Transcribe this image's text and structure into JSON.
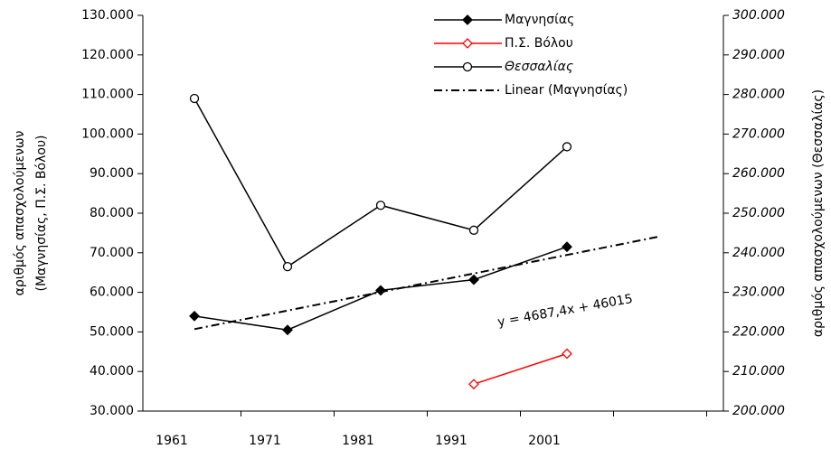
{
  "chart_data": {
    "type": "line",
    "categories": [
      "1961",
      "1971",
      "1981",
      "1991",
      "2001",
      null
    ],
    "y_label": [
      "αριθμός απασχολούμενων",
      "(Μαγνησίας, Π.Σ. Βόλου)"
    ],
    "y2_label": "αριθμός απασχολούμενων (Θεσσαλίας)",
    "annotation": "y = 4687,4x + 46015",
    "series": [
      {
        "name": "Μαγνησίας",
        "color": "#000000",
        "marker": "diamond",
        "values": [
          54000,
          50500,
          60500,
          63200,
          71500,
          null
        ]
      },
      {
        "name": "Π.Σ. Βόλου",
        "color": "#ff0000",
        "marker": "diamond-open",
        "values": [
          null,
          null,
          null,
          36800,
          44500,
          null
        ]
      },
      {
        "name": "Θεσσαλίας",
        "color": "#000000",
        "marker": "circle-open",
        "axis": "y2",
        "italic": true,
        "values": [
          279000,
          236500,
          252000,
          245700,
          266800,
          null
        ]
      },
      {
        "name": "Linear (Μαγνησίας)",
        "color": "#000000",
        "marker": "none",
        "dash": "dashdot",
        "values": [
          50702,
          55390,
          60077,
          64765,
          69452,
          74139
        ]
      }
    ],
    "ylim": [
      30000,
      130000
    ],
    "yticks": [
      {
        "value": 30000,
        "label": "30.000"
      },
      {
        "value": 40000,
        "label": "40.000"
      },
      {
        "value": 50000,
        "label": "50.000"
      },
      {
        "value": 60000,
        "label": "60.000"
      },
      {
        "value": 70000,
        "label": "70.000"
      },
      {
        "value": 80000,
        "label": "80.000"
      },
      {
        "value": 90000,
        "label": "90.000"
      },
      {
        "value": 100000,
        "label": "100.000"
      },
      {
        "value": 110000,
        "label": "110.000"
      },
      {
        "value": 120000,
        "label": "120.000"
      },
      {
        "value": 130000,
        "label": "130.000"
      }
    ],
    "y2lim": [
      200000,
      300000
    ],
    "y2ticks": [
      {
        "value": 200000,
        "label": "200.000"
      },
      {
        "value": 210000,
        "label": "210.000"
      },
      {
        "value": 220000,
        "label": "220.000"
      },
      {
        "value": 230000,
        "label": "230.000"
      },
      {
        "value": 240000,
        "label": "240.000"
      },
      {
        "value": 250000,
        "label": "250.000"
      },
      {
        "value": 260000,
        "label": "260.000"
      },
      {
        "value": 270000,
        "label": "270.000"
      },
      {
        "value": 280000,
        "label": "280.000"
      },
      {
        "value": 290000,
        "label": "290.000"
      },
      {
        "value": 300000,
        "label": "300.000"
      }
    ],
    "legend": "top-right"
  }
}
